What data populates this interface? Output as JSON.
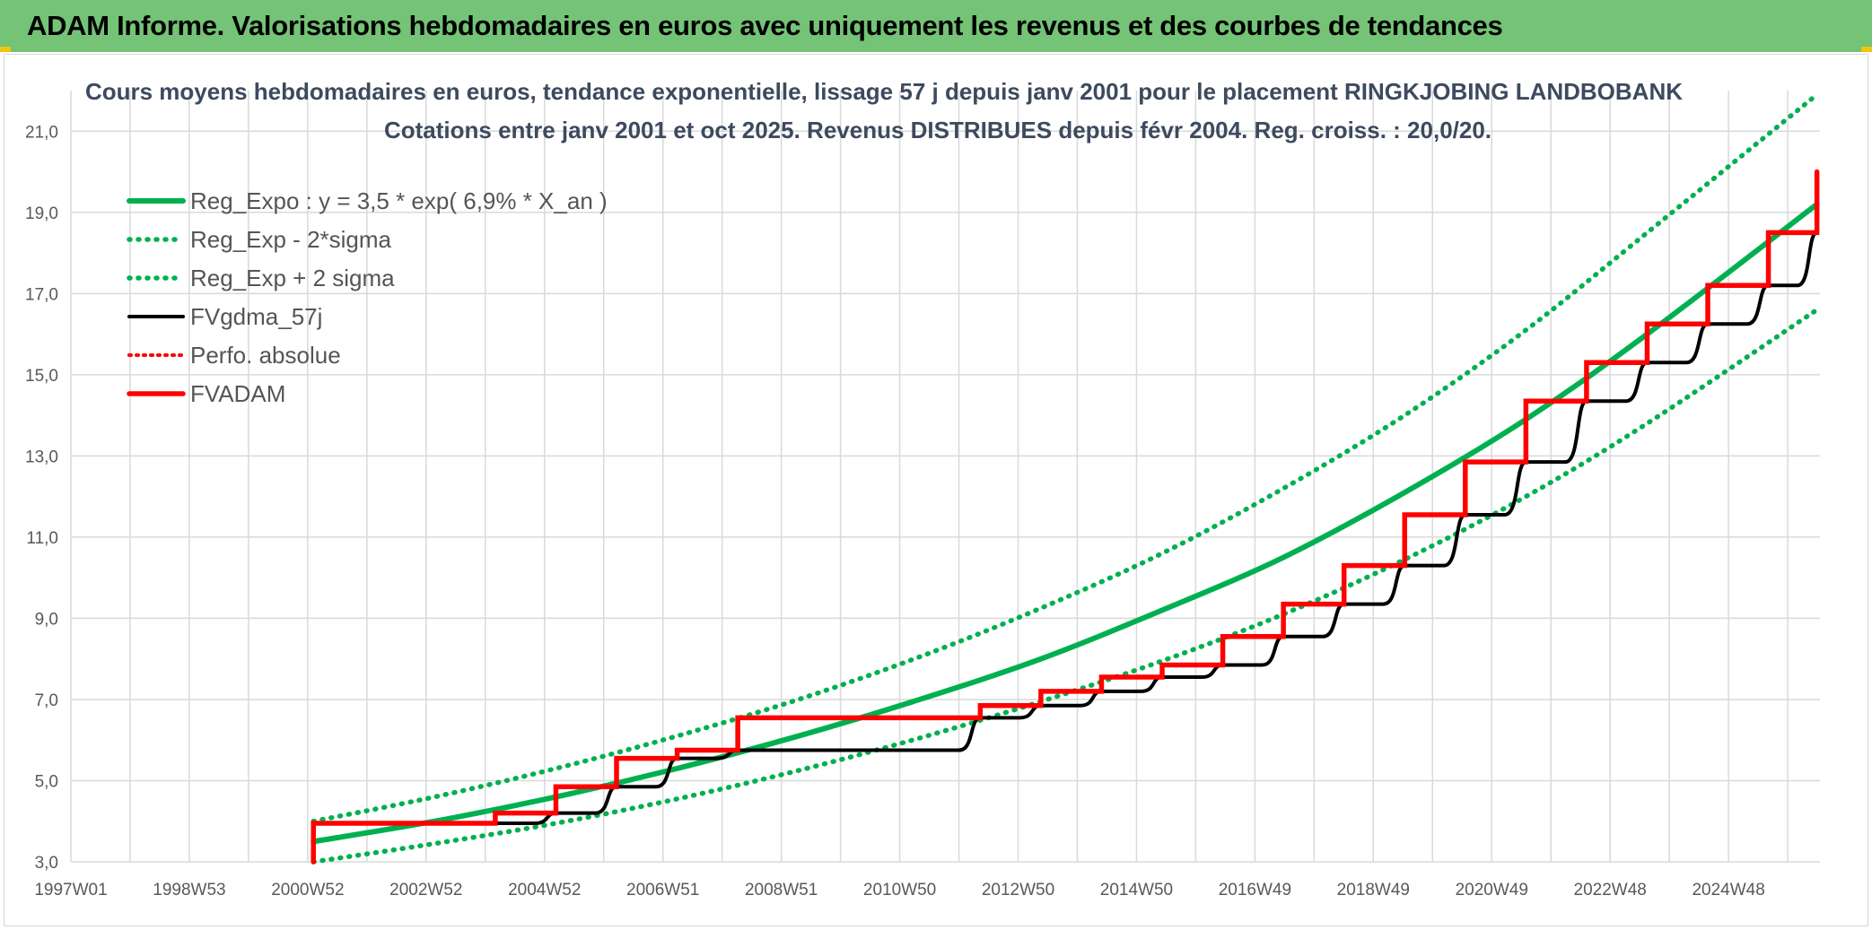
{
  "banner": {
    "title": "ADAM Informe. Valorisations hebdomadaires en euros avec uniquement les revenus et des courbes de tendances"
  },
  "colors": {
    "banner_bg": "#74c377",
    "corner_accent": "#f2c40c",
    "trend_green": "#00b050",
    "step_red": "#ff0000",
    "smooth_black": "#000000",
    "grid": "#d9d9d9"
  },
  "chart_data": {
    "type": "line",
    "title": "Cours moyens hebdomadaires en euros, tendance exponentielle, lissage 57 j depuis janv 2001 pour le placement RINGKJOBING LANDBOBANK",
    "subtitle": "Cotations entre janv 2001 et oct 2025. Revenus DISTRIBUES depuis févr 2004. Reg. croiss. : 20,0/20.",
    "xlabel": "",
    "ylabel": "",
    "x_tick_labels": [
      "1997W01",
      "1998W53",
      "2000W52",
      "2002W52",
      "2004W52",
      "2006W51",
      "2008W51",
      "2010W50",
      "2012W50",
      "2014W50",
      "2016W49",
      "2018W49",
      "2020W49",
      "2022W48",
      "2024W48"
    ],
    "y_ticks": [
      "3,0",
      "5,0",
      "7,0",
      "9,0",
      "11,0",
      "13,0",
      "15,0",
      "17,0",
      "19,0",
      "21,0"
    ],
    "xlim": [
      1997.0,
      2025.85
    ],
    "ylim": [
      3.0,
      22.0
    ],
    "grid": true,
    "legend_position": "top-left",
    "series": [
      {
        "name": "Reg_Expo : y = 3,5 * exp( 6,9% *  X_an )",
        "style": "solid-green",
        "x": [
          2001.0,
          2003.0,
          2005.0,
          2007.0,
          2009.0,
          2011.0,
          2013.0,
          2015.0,
          2017.0,
          2019.0,
          2021.0,
          2023.0,
          2025.8
        ],
        "values": [
          3.5,
          4.0,
          4.6,
          5.3,
          6.1,
          7.0,
          8.0,
          9.2,
          10.5,
          12.1,
          13.9,
          16.0,
          19.2
        ]
      },
      {
        "name": "Reg_Exp - 2*sigma",
        "style": "dotted-green",
        "x": [
          2001.0,
          2003.0,
          2005.0,
          2007.0,
          2009.0,
          2011.0,
          2013.0,
          2015.0,
          2017.0,
          2019.0,
          2021.0,
          2023.0,
          2025.8
        ],
        "values": [
          3.0,
          3.45,
          3.95,
          4.55,
          5.25,
          6.05,
          6.95,
          7.95,
          9.1,
          10.45,
          12.0,
          13.8,
          16.6
        ]
      },
      {
        "name": "Reg_Exp + 2 sigma",
        "style": "dotted-green",
        "x": [
          2001.0,
          2003.0,
          2005.0,
          2007.0,
          2009.0,
          2011.0,
          2013.0,
          2015.0,
          2017.0,
          2019.0,
          2021.0,
          2023.0,
          2025.8
        ],
        "values": [
          4.0,
          4.6,
          5.3,
          6.1,
          7.0,
          8.05,
          9.25,
          10.6,
          12.2,
          14.0,
          16.1,
          18.5,
          21.9
        ]
      },
      {
        "name": "FVgdma_57j",
        "style": "solid-black-smoothed",
        "x": [
          2001.0,
          2004.0,
          2005.0,
          2006.0,
          2007.0,
          2008.0,
          2012.0,
          2013.0,
          2014.0,
          2015.0,
          2016.0,
          2017.0,
          2018.0,
          2019.0,
          2020.0,
          2021.0,
          2022.0,
          2023.0,
          2024.0,
          2025.0,
          2025.8
        ],
        "values": [
          3.95,
          3.95,
          4.2,
          4.85,
          5.55,
          5.75,
          6.55,
          6.85,
          7.2,
          7.55,
          7.85,
          8.55,
          9.35,
          10.3,
          11.55,
          12.85,
          14.35,
          15.3,
          16.25,
          17.2,
          18.5
        ]
      },
      {
        "name": "Perfo. absolue",
        "style": "dotted-red",
        "x": [],
        "values": []
      },
      {
        "name": "FVADAM",
        "style": "step-red",
        "x": [
          2001.0,
          2001.0,
          2004.0,
          2005.0,
          2006.0,
          2007.0,
          2008.0,
          2012.0,
          2013.0,
          2014.0,
          2015.0,
          2016.0,
          2017.0,
          2018.0,
          2019.0,
          2020.0,
          2021.0,
          2022.0,
          2023.0,
          2024.0,
          2025.0,
          2025.8
        ],
        "values": [
          3.0,
          3.95,
          4.2,
          4.85,
          5.55,
          5.75,
          6.55,
          6.85,
          7.2,
          7.55,
          7.85,
          8.55,
          9.35,
          10.3,
          11.55,
          12.85,
          14.35,
          15.3,
          16.25,
          17.2,
          18.5,
          20.0
        ]
      }
    ]
  }
}
